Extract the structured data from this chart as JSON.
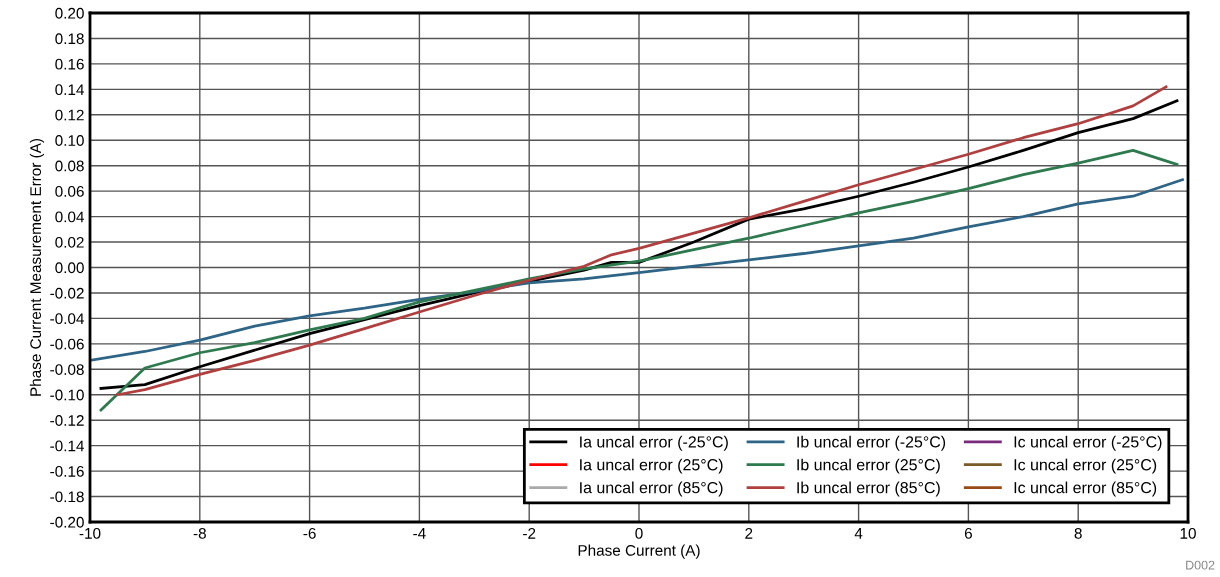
{
  "chart_data": {
    "type": "line",
    "xlabel": "Phase Current (A)",
    "ylabel": "Phase Current Measurement Error (A)",
    "xlim": [
      -10,
      10
    ],
    "xticks": [
      -10,
      -8,
      -6,
      -4,
      -2,
      0,
      2,
      4,
      6,
      8,
      10
    ],
    "ylim": [
      -0.2,
      0.2
    ],
    "yticks": [
      {
        "value": -0.2,
        "label": "-0.20"
      },
      {
        "value": -0.18,
        "label": "-0.18"
      },
      {
        "value": -0.16,
        "label": "-0.16"
      },
      {
        "value": -0.14,
        "label": "-0.14"
      },
      {
        "value": -0.12,
        "label": "-0.12"
      },
      {
        "value": -0.1,
        "label": "-0.10"
      },
      {
        "value": -0.08,
        "label": "-0.08"
      },
      {
        "value": -0.06,
        "label": "-0.06"
      },
      {
        "value": -0.04,
        "label": "-0.04"
      },
      {
        "value": -0.02,
        "label": "-0.02"
      },
      {
        "value": 0,
        "label": "0.00"
      },
      {
        "value": 0.02,
        "label": "0.02"
      },
      {
        "value": 0.04,
        "label": "0.04"
      },
      {
        "value": 0.06,
        "label": "0.06"
      },
      {
        "value": 0.08,
        "label": "0.08"
      },
      {
        "value": 0.1,
        "label": "0.10"
      },
      {
        "value": 0.12,
        "label": "0.12"
      },
      {
        "value": 0.14,
        "label": "0.14"
      },
      {
        "value": 0.16,
        "label": "0.16"
      },
      {
        "value": 0.18,
        "label": "0.18"
      },
      {
        "value": 0.2,
        "label": "0.20"
      }
    ],
    "grid": true,
    "legend": "bottom right",
    "marker": "none",
    "line_style": "solid",
    "annotations": [
      "D002"
    ],
    "series": [
      {
        "name": "Ia uncal error (-25°C)",
        "color": "#000000",
        "x": [
          -9.8,
          -9,
          -8,
          -6,
          -4,
          -3,
          -2,
          -1,
          -0.5,
          0,
          1,
          2,
          3,
          4,
          5,
          6,
          7,
          8,
          9,
          9.8
        ],
        "values": [
          -0.095,
          -0.092,
          -0.078,
          -0.052,
          -0.03,
          -0.02,
          -0.011,
          -0.002,
          0.004,
          0.004,
          0.02,
          0.038,
          0.046,
          0.056,
          0.067,
          0.079,
          0.092,
          0.106,
          0.117,
          0.131
        ]
      },
      {
        "name": "Ia uncal error (25°C)",
        "color": "#ff0000"
      },
      {
        "name": "Ia uncal error (85°C)",
        "color": "#aaaaaa"
      },
      {
        "name": "Ib uncal error (-25°C)",
        "color": "#2e6486",
        "x": [
          -10,
          -9,
          -8,
          -7,
          -6,
          -5,
          -4,
          -3,
          -2,
          -1,
          0,
          1,
          2,
          3,
          4,
          5,
          6,
          7,
          8,
          9,
          9.9
        ],
        "values": [
          -0.073,
          -0.066,
          -0.057,
          -0.046,
          -0.038,
          -0.032,
          -0.025,
          -0.019,
          -0.012,
          -0.009,
          -0.004,
          0.001,
          0.006,
          0.011,
          0.017,
          0.023,
          0.032,
          0.04,
          0.05,
          0.056,
          0.069
        ]
      },
      {
        "name": "Ib uncal error (25°C)",
        "color": "#2e7a4e",
        "x": [
          -9.8,
          -9,
          -8,
          -7,
          -6,
          -5,
          -4,
          -3,
          -2,
          -1,
          0,
          1,
          2,
          3,
          4,
          5,
          6,
          7,
          8,
          9,
          9.8
        ],
        "values": [
          -0.112,
          -0.079,
          -0.067,
          -0.059,
          -0.049,
          -0.04,
          -0.027,
          -0.018,
          -0.009,
          -0.001,
          0.005,
          0.014,
          0.023,
          0.033,
          0.043,
          0.052,
          0.062,
          0.073,
          0.082,
          0.092,
          0.081
        ]
      },
      {
        "name": "Ib uncal error (85°C)",
        "color": "#b04040",
        "x": [
          -9.5,
          -9,
          -8,
          -7,
          -6,
          -5,
          -4,
          -3,
          -2,
          -1,
          -0.5,
          0,
          1,
          2,
          3,
          4,
          5,
          6,
          7,
          8,
          9,
          9.6
        ],
        "values": [
          -0.1,
          -0.096,
          -0.084,
          -0.073,
          -0.061,
          -0.048,
          -0.035,
          -0.022,
          -0.01,
          0.001,
          0.01,
          0.015,
          0.027,
          0.039,
          0.052,
          0.065,
          0.077,
          0.089,
          0.102,
          0.113,
          0.127,
          0.142
        ]
      },
      {
        "name": "Ic uncal error (-25°C)",
        "color": "#7a2a7a"
      },
      {
        "name": "Ic uncal error (25°C)",
        "color": "#7a5a28"
      },
      {
        "name": "Ic uncal error (85°C)",
        "color": "#9a4a14"
      }
    ]
  }
}
